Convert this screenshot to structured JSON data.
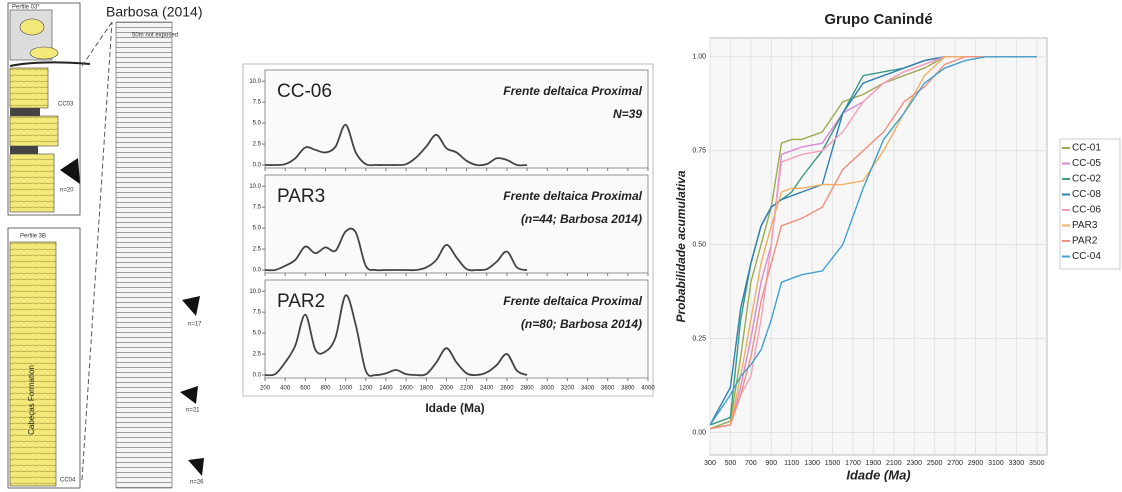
{
  "column_diagram": {
    "source": "Barbosa (2014)",
    "profile_top": "Perfile 03*",
    "profile_bottom": "Perfile 3B",
    "formation": "Cabeças Formation",
    "not_exposed": "50m not exposed",
    "samples": [
      "CC03",
      "CC04"
    ],
    "counts": [
      "n=20",
      "n=17",
      "n=21",
      "n=26"
    ]
  },
  "chart_data": [
    {
      "type": "kde",
      "xlabel": "Idade (Ma)",
      "xlim": [
        200,
        4000
      ],
      "xticks": [
        200,
        400,
        600,
        800,
        1000,
        1200,
        1400,
        1600,
        1800,
        2000,
        2200,
        2400,
        2600,
        2800,
        3000,
        3200,
        3400,
        3600,
        3800,
        4000
      ],
      "ylim": [
        0,
        10.5
      ],
      "yticks": [
        {
          "value": 0,
          "label": "0.0"
        },
        2.5,
        {
          "value": 5,
          "label": "5.0"
        },
        7.5,
        {
          "value": 10,
          "label": "10.0"
        }
      ],
      "x": [
        200,
        300,
        400,
        500,
        600,
        700,
        800,
        900,
        1000,
        1100,
        1200,
        1300,
        1400,
        1500,
        1600,
        1700,
        1800,
        1900,
        2000,
        2100,
        2200,
        2300,
        2400,
        2500,
        2600,
        2700,
        2800
      ],
      "color": "#444444",
      "panels": [
        {
          "name": "CC-06",
          "annotation": [
            "Frente deltaica Proximal",
            "N=39"
          ],
          "values": [
            0,
            0,
            0.1,
            0.8,
            2.1,
            1.8,
            1.5,
            2.2,
            4.8,
            1.5,
            0.1,
            0,
            0,
            0,
            0.1,
            0.9,
            2.2,
            3.6,
            2.0,
            1.5,
            0.5,
            0,
            0.1,
            0.8,
            0.6,
            0,
            0
          ]
        },
        {
          "name": "PAR3",
          "annotation": [
            "Frente deltaica Proximal",
            "(n=44; Barbosa 2014)"
          ],
          "values": [
            0,
            0,
            0.5,
            1.2,
            2.8,
            2.0,
            2.7,
            2.3,
            4.6,
            4.5,
            0.5,
            0,
            0,
            0,
            0,
            0,
            0.3,
            1.2,
            3.0,
            1.5,
            0.1,
            0,
            0.1,
            1.0,
            2.2,
            0.3,
            0
          ]
        },
        {
          "name": "PAR2",
          "annotation": [
            "Frente deltaica Proximal",
            "(n=80; Barbosa 2014)"
          ],
          "values": [
            0,
            0.1,
            1.5,
            3.5,
            7.2,
            3.0,
            2.8,
            4.5,
            9.5,
            6.0,
            0.5,
            0,
            0.2,
            0.6,
            0.1,
            0,
            0.1,
            1.5,
            3.2,
            1.5,
            0.2,
            0,
            0.3,
            1.2,
            2.5,
            0.5,
            0
          ]
        }
      ]
    },
    {
      "type": "line",
      "title": "Grupo Canindé",
      "xlabel": "Idade (Ma)",
      "ylabel": "Probabilidade acumulativa",
      "xlim": [
        300,
        3600
      ],
      "xticks": [
        300,
        500,
        700,
        900,
        1100,
        1300,
        1500,
        1700,
        1900,
        2100,
        2300,
        2500,
        2700,
        2900,
        3100,
        3300,
        3500
      ],
      "ylim": [
        -0.06,
        1.05
      ],
      "yticks": [
        {
          "value": 0,
          "label": "0.00"
        },
        {
          "value": 0.25,
          "label": "0.25"
        },
        {
          "value": 0.5,
          "label": "0.50"
        },
        {
          "value": 0.75,
          "label": "0.75"
        },
        {
          "value": 1,
          "label": "1.00"
        }
      ],
      "grid": true,
      "legend": "right",
      "x": [
        300,
        500,
        600,
        700,
        800,
        900,
        1000,
        1100,
        1200,
        1400,
        1600,
        1800,
        2000,
        2200,
        2400,
        2600,
        2800,
        3000,
        3500
      ],
      "series": [
        {
          "name": "CC-01",
          "color": "#9aaa50",
          "values": [
            0.01,
            0.03,
            0.2,
            0.4,
            0.5,
            0.6,
            0.77,
            0.78,
            0.78,
            0.8,
            0.88,
            0.9,
            0.93,
            0.95,
            0.97,
            1.0,
            1.0,
            1.0,
            1.0
          ]
        },
        {
          "name": "CC-05",
          "color": "#d98ad2",
          "values": [
            0.01,
            0.02,
            0.12,
            0.25,
            0.4,
            0.5,
            0.74,
            0.75,
            0.76,
            0.77,
            0.85,
            0.88,
            0.93,
            0.96,
            0.98,
            1.0,
            1.0,
            1.0,
            1.0
          ]
        },
        {
          "name": "CC-02",
          "color": "#3a9a80",
          "values": [
            0.02,
            0.04,
            0.3,
            0.45,
            0.55,
            0.6,
            0.62,
            0.64,
            0.68,
            0.75,
            0.85,
            0.95,
            0.96,
            0.97,
            0.99,
            1.0,
            1.0,
            1.0,
            1.0
          ]
        },
        {
          "name": "CC-08",
          "color": "#2f7fb0",
          "values": [
            0.02,
            0.12,
            0.33,
            0.45,
            0.55,
            0.6,
            0.62,
            0.63,
            0.64,
            0.66,
            0.85,
            0.93,
            0.95,
            0.97,
            0.99,
            1.0,
            1.0,
            1.0,
            1.0
          ]
        },
        {
          "name": "CC-06",
          "color": "#f4a0b8",
          "values": [
            0.01,
            0.02,
            0.1,
            0.15,
            0.3,
            0.5,
            0.72,
            0.73,
            0.74,
            0.75,
            0.8,
            0.88,
            0.93,
            0.96,
            0.98,
            1.0,
            1.0,
            1.0,
            1.0
          ]
        },
        {
          "name": "PAR3",
          "color": "#f0b060",
          "values": [
            0.01,
            0.02,
            0.15,
            0.3,
            0.45,
            0.55,
            0.64,
            0.65,
            0.65,
            0.66,
            0.66,
            0.67,
            0.75,
            0.85,
            0.95,
            1.0,
            1.0,
            1.0,
            1.0
          ]
        },
        {
          "name": "PAR2",
          "color": "#f09080",
          "values": [
            0.01,
            0.02,
            0.1,
            0.2,
            0.35,
            0.45,
            0.55,
            0.56,
            0.57,
            0.6,
            0.7,
            0.75,
            0.8,
            0.88,
            0.92,
            0.98,
            1.0,
            1.0,
            1.0
          ]
        },
        {
          "name": "CC-04",
          "color": "#40a0d0",
          "values": [
            0.02,
            0.1,
            0.15,
            0.18,
            0.22,
            0.3,
            0.4,
            0.41,
            0.42,
            0.43,
            0.5,
            0.65,
            0.78,
            0.85,
            0.93,
            0.97,
            0.99,
            1.0,
            1.0
          ]
        }
      ]
    }
  ]
}
